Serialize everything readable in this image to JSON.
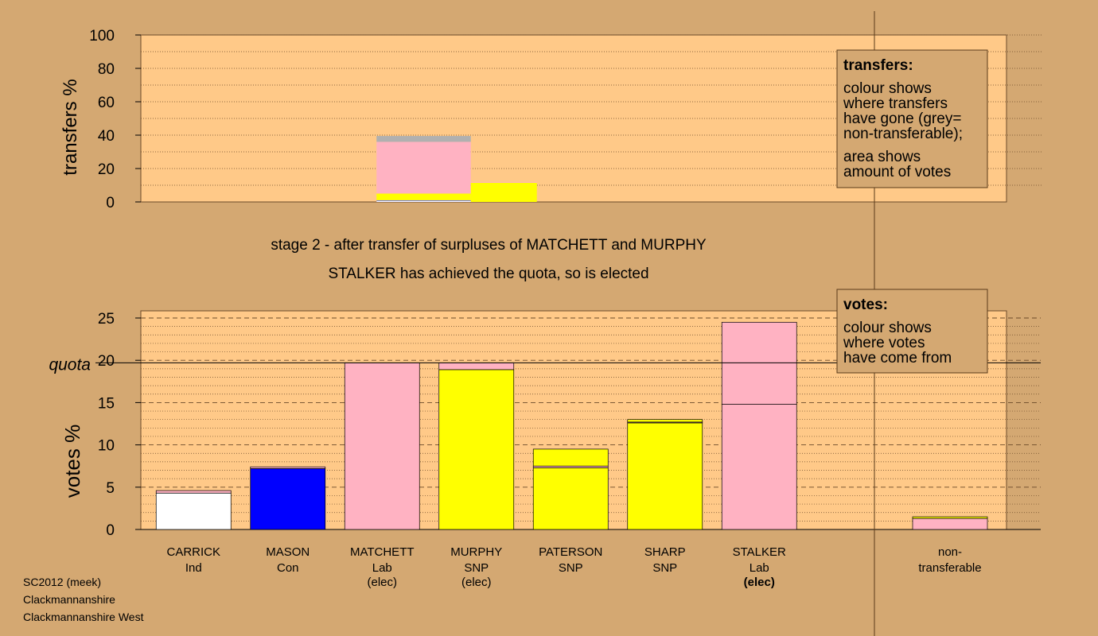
{
  "colors": {
    "background": "#d4a872",
    "plot_area": "#ffc988",
    "legend_box": "#d4a872",
    "party": {
      "Ind": "#ffffff",
      "Con": "#0000ff",
      "Lab": "#ffb2c2",
      "SNP": "#ffff00",
      "non_transferable": "#b0b0b0"
    }
  },
  "header": {
    "stage_text": "stage 2 - after transfer of surpluses of MATCHETT and MURPHY",
    "status_text": "STALKER has achieved the quota, so is elected"
  },
  "footer": {
    "line1": "SC2012 (meek)",
    "line2": "Clackmannanshire",
    "line3": "Clackmannanshire West"
  },
  "legends": {
    "transfers": {
      "title": "transfers:",
      "lines1": [
        "colour shows",
        "where transfers",
        "have gone (grey=",
        "non-transferable);"
      ],
      "lines2": [
        "area shows",
        "amount of votes"
      ]
    },
    "votes": {
      "title": "votes:",
      "lines1": [
        "colour shows",
        "where votes",
        "have come from"
      ]
    }
  },
  "chart_data": [
    {
      "type": "bar",
      "name": "transfers",
      "ylabel": "transfers %",
      "ylim": [
        0,
        100
      ],
      "yticks": [
        0,
        20,
        40,
        60,
        80,
        100
      ],
      "grid": "dotted, every 10",
      "transfers": [
        {
          "from": "MATCHETT",
          "x_start": 2.5,
          "x_end": 3.5,
          "segments": [
            {
              "to": "Ind",
              "value": 0.7
            },
            {
              "to": "Con",
              "value": 0.3
            },
            {
              "to": "SNP",
              "value": 4.0
            },
            {
              "to": "Lab",
              "value": 31.0
            },
            {
              "to": "non-transferable",
              "value": 3.5
            }
          ]
        },
        {
          "from": "MURPHY",
          "x_start": 3.5,
          "x_end": 4.2,
          "segments": [
            {
              "to": "SNP",
              "value": 11.5
            },
            {
              "to": "Lab",
              "value": 0.5
            }
          ]
        }
      ]
    },
    {
      "type": "bar",
      "name": "votes",
      "ylabel": "votes %",
      "ylim": [
        0,
        25
      ],
      "yticks": [
        0,
        5,
        10,
        15,
        20,
        25
      ],
      "quota": 19.7,
      "quota_label": "quota",
      "candidates": [
        {
          "name": "CARRICK",
          "party": "Ind",
          "note": "",
          "segments": [
            {
              "from": "Ind",
              "value": 4.3
            },
            {
              "from": "Lab",
              "value": 0.3
            }
          ]
        },
        {
          "name": "MASON",
          "party": "Con",
          "note": "",
          "segments": [
            {
              "from": "Con",
              "value": 7.2
            },
            {
              "from": "Lab",
              "value": 0.2
            }
          ]
        },
        {
          "name": "MATCHETT",
          "party": "Lab",
          "note": "(elec)",
          "segments": [
            {
              "from": "Lab",
              "value": 19.7
            }
          ]
        },
        {
          "name": "MURPHY",
          "party": "SNP",
          "note": "(elec)",
          "segments": [
            {
              "from": "SNP",
              "value": 18.9
            },
            {
              "from": "Lab",
              "value": 0.8
            }
          ]
        },
        {
          "name": "PATERSON",
          "party": "SNP",
          "note": "",
          "segments": [
            {
              "from": "SNP",
              "value": 7.3
            },
            {
              "from": "Lab",
              "value": 0.2
            },
            {
              "from": "SNP",
              "value": 2.0
            }
          ]
        },
        {
          "name": "SHARP",
          "party": "SNP",
          "note": "",
          "segments": [
            {
              "from": "SNP",
              "value": 12.6
            },
            {
              "from": "Lab",
              "value": 0.1
            },
            {
              "from": "SNP",
              "value": 0.3
            }
          ]
        },
        {
          "name": "STALKER",
          "party": "Lab",
          "note": "(elec)",
          "segments": [
            {
              "from": "Lab",
              "value": 14.8
            },
            {
              "from": "Lab",
              "value": 9.7
            }
          ]
        }
      ],
      "non_transferable": {
        "label_line1": "non-",
        "label_line2": "transferable",
        "segments": [
          {
            "from": "Lab",
            "value": 1.3
          },
          {
            "from": "SNP",
            "value": 0.2
          }
        ]
      }
    }
  ]
}
